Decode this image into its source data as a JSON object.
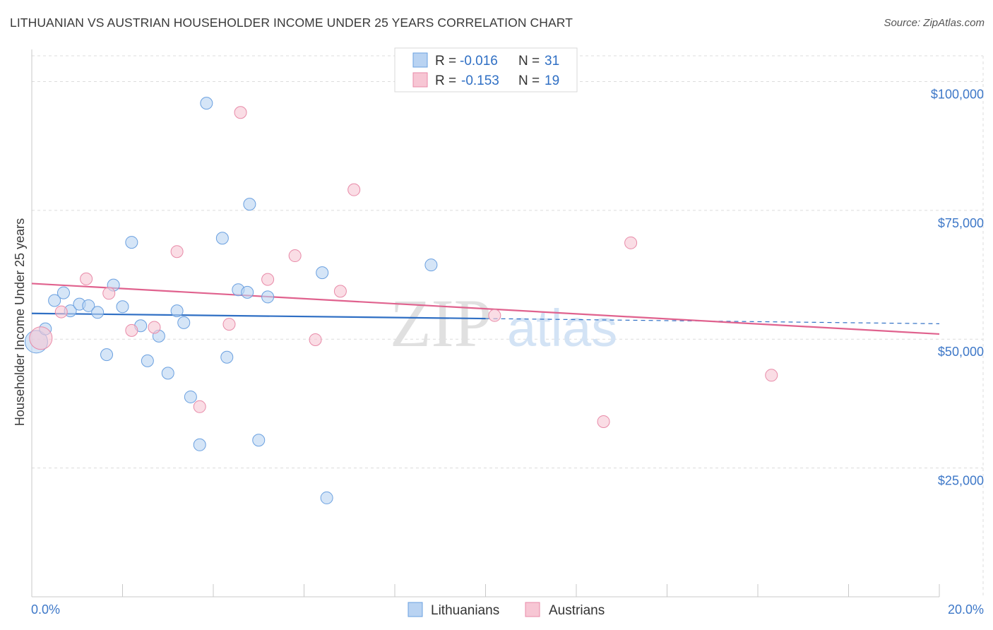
{
  "title": "LITHUANIAN VS AUSTRIAN HOUSEHOLDER INCOME UNDER 25 YEARS CORRELATION CHART",
  "source": "Source: ZipAtlas.com",
  "watermark": {
    "zip": "ZIP",
    "atlas": "atlas"
  },
  "chart_data": {
    "type": "scatter",
    "xlabel": "",
    "ylabel": "Householder Income Under 25 years",
    "xlim": [
      0,
      20
    ],
    "ylim": [
      0,
      105000
    ],
    "x_tick_labels": [
      "0.0%",
      "20.0%"
    ],
    "y_ticks": [
      25000,
      50000,
      75000,
      100000
    ],
    "y_tick_labels": [
      "$25,000",
      "$50,000",
      "$75,000",
      "$100,000"
    ],
    "legend_stats": [
      {
        "r_label": "R =",
        "r_value": "-0.016",
        "n_label": "N =",
        "n_value": "31"
      },
      {
        "r_label": "R =",
        "r_value": "-0.153",
        "n_label": "N =",
        "n_value": "19"
      }
    ],
    "series": [
      {
        "name": "Lithuanians",
        "color": "#6aa0e0",
        "fill": "#b9d3f2",
        "trend": {
          "y_at_0": 55000,
          "y_at_20": 53000,
          "solid_until": 10
        },
        "points": [
          [
            0.1,
            49500
          ],
          [
            0.3,
            52000
          ],
          [
            0.5,
            57500
          ],
          [
            0.7,
            59000
          ],
          [
            0.85,
            55500
          ],
          [
            1.05,
            56800
          ],
          [
            1.25,
            56500
          ],
          [
            1.45,
            55200
          ],
          [
            1.65,
            47000
          ],
          [
            1.8,
            60500
          ],
          [
            2.0,
            56300
          ],
          [
            2.2,
            68800
          ],
          [
            2.4,
            52600
          ],
          [
            2.55,
            45800
          ],
          [
            2.8,
            50600
          ],
          [
            3.0,
            43400
          ],
          [
            3.2,
            55500
          ],
          [
            3.35,
            53200
          ],
          [
            3.5,
            38800
          ],
          [
            3.7,
            29500
          ],
          [
            3.85,
            95800
          ],
          [
            4.2,
            69600
          ],
          [
            4.3,
            46500
          ],
          [
            4.55,
            59600
          ],
          [
            4.75,
            59100
          ],
          [
            4.8,
            76200
          ],
          [
            5.0,
            30400
          ],
          [
            5.2,
            58200
          ],
          [
            6.4,
            62900
          ],
          [
            6.5,
            19200
          ],
          [
            8.8,
            64400
          ]
        ]
      },
      {
        "name": "Austrians",
        "color": "#e88aa8",
        "fill": "#f7c6d4",
        "trend": {
          "y_at_0": 60800,
          "y_at_20": 51000,
          "solid_until": 20
        },
        "points": [
          [
            0.2,
            50200
          ],
          [
            0.65,
            55300
          ],
          [
            1.2,
            61700
          ],
          [
            1.7,
            58900
          ],
          [
            2.2,
            51700
          ],
          [
            2.7,
            52300
          ],
          [
            3.2,
            67000
          ],
          [
            3.7,
            36900
          ],
          [
            4.35,
            52900
          ],
          [
            4.6,
            94000
          ],
          [
            5.2,
            61600
          ],
          [
            5.8,
            66200
          ],
          [
            6.25,
            49900
          ],
          [
            6.8,
            59300
          ],
          [
            7.1,
            79000
          ],
          [
            10.2,
            54600
          ],
          [
            12.6,
            34000
          ],
          [
            13.2,
            68700
          ],
          [
            16.3,
            43000
          ]
        ]
      }
    ]
  }
}
